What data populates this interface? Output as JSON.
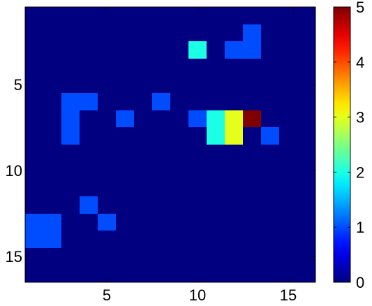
{
  "chart_data": {
    "type": "heatmap",
    "title": "",
    "xlabel": "",
    "ylabel": "",
    "xlim": [
      0.5,
      16.5
    ],
    "ylim": [
      0.5,
      16.5
    ],
    "y_reversed": true,
    "x_ticks": [
      5,
      10,
      15
    ],
    "y_ticks": [
      5,
      10,
      15
    ],
    "colorbar": {
      "colormap": "jet",
      "range": [
        0,
        5
      ],
      "ticks": [
        0,
        1,
        2,
        3,
        4,
        5
      ],
      "placement": "right"
    },
    "grid": false,
    "background_value": 0,
    "cells": [
      {
        "row": 2,
        "col": 13,
        "value": 1
      },
      {
        "row": 3,
        "col": 10,
        "value": 2
      },
      {
        "row": 3,
        "col": 12,
        "value": 1
      },
      {
        "row": 3,
        "col": 13,
        "value": 1
      },
      {
        "row": 6,
        "col": 3,
        "value": 1
      },
      {
        "row": 6,
        "col": 4,
        "value": 1
      },
      {
        "row": 6,
        "col": 8,
        "value": 1
      },
      {
        "row": 7,
        "col": 3,
        "value": 1
      },
      {
        "row": 7,
        "col": 6,
        "value": 1
      },
      {
        "row": 7,
        "col": 10,
        "value": 1
      },
      {
        "row": 7,
        "col": 11,
        "value": 2
      },
      {
        "row": 7,
        "col": 12,
        "value": 3
      },
      {
        "row": 7,
        "col": 13,
        "value": 5
      },
      {
        "row": 8,
        "col": 3,
        "value": 1
      },
      {
        "row": 8,
        "col": 11,
        "value": 2
      },
      {
        "row": 8,
        "col": 12,
        "value": 3
      },
      {
        "row": 8,
        "col": 14,
        "value": 1
      },
      {
        "row": 12,
        "col": 4,
        "value": 1
      },
      {
        "row": 13,
        "col": 1,
        "value": 1
      },
      {
        "row": 13,
        "col": 2,
        "value": 1
      },
      {
        "row": 13,
        "col": 5,
        "value": 1
      },
      {
        "row": 14,
        "col": 1,
        "value": 1
      },
      {
        "row": 14,
        "col": 2,
        "value": 1
      }
    ]
  }
}
